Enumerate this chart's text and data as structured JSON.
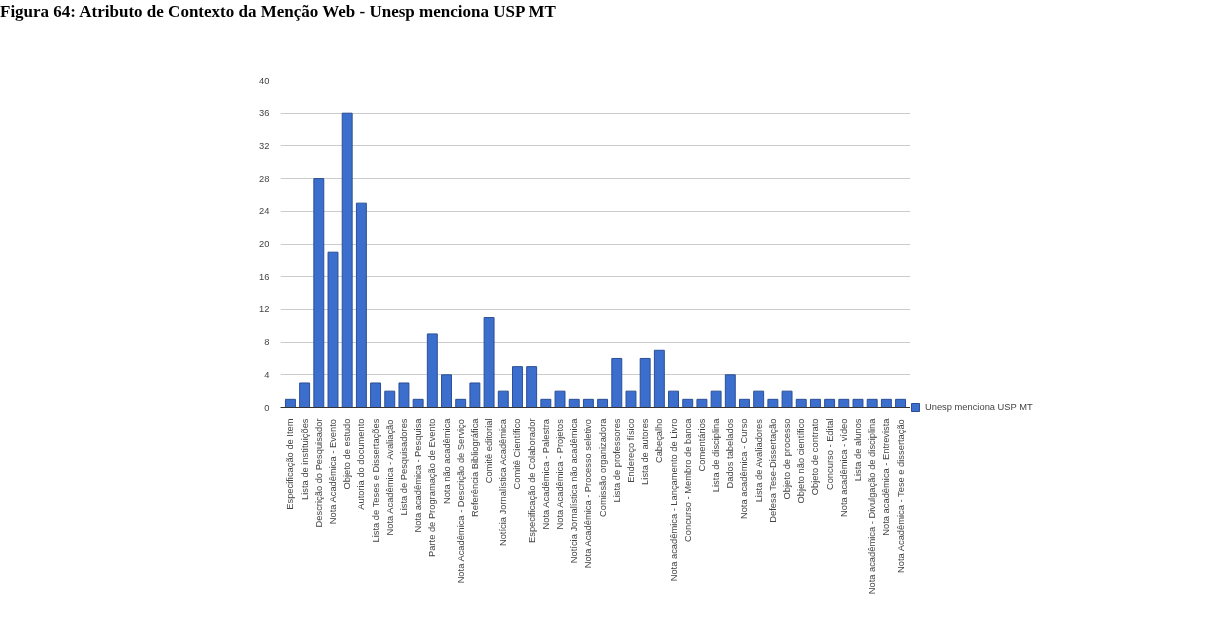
{
  "chart_data": {
    "type": "bar",
    "title": "Figura 64: Atributo de Contexto da Menção Web - Unesp menciona USP MT",
    "categories": [
      "Especificação de Item",
      "Lista de instituições",
      "Descrição do Pesquisador",
      "Nota Acadêmica - Evento",
      "Objeto de estudo",
      "Autoria do documento",
      "Lista de Teses e Dissertações",
      "Nota Acadêmica - Avaliação",
      "Lista de Pesquisadores",
      "Nota acadêmica - Pesquisa",
      "Parte de Programação de Evento",
      "Nota não acadêmica",
      "Nota Acadêmica - Descrição de Serviço",
      "Referência Bibliográfica",
      "Comitê editorial",
      "Notícia Jornalística Acadêmica",
      "Comitê Científico",
      "Especificação de Colaborador",
      "Nota Acadêmica - Palestra",
      "Nota Acadêmica - Projetos",
      "Notícia Jornalística não acadêmica",
      "Nota Acadêmica - Processo seletivo",
      "Comissão organizadora",
      "Lista de professores",
      "Endereço físico",
      "Lista de autores",
      "Cabeçalho",
      "Nota acadêmica - Lançamento de Livro",
      "Concurso - Membro de banca",
      "Comentários",
      "Lista de disciplina",
      "Dados tabelados",
      "Nota acadêmica - Curso",
      "Lista de Avaliadores",
      "Defesa Tese-Dissertação",
      "Objeto de processo",
      "Objeto não científico",
      "Objeto de contrato",
      "Concurso - Edital",
      "Nota acadêmica - vídeo",
      "Lista de alunos",
      "Nota acadêmica - Divulgação de disciplina",
      "Nota acadêmica - Entrevista",
      "Nota Acadêmica - Tese e dissertação"
    ],
    "series": [
      {
        "name": "Unesp menciona USP MT",
        "color": "#3c6fcd",
        "values": [
          1,
          3,
          28,
          19,
          36,
          25,
          3,
          2,
          3,
          1,
          9,
          4,
          1,
          3,
          11,
          2,
          5,
          5,
          1,
          2,
          1,
          1,
          1,
          6,
          2,
          6,
          7,
          2,
          1,
          1,
          2,
          4,
          1,
          2,
          1,
          2,
          1,
          1,
          1,
          1,
          1,
          1,
          1,
          1
        ]
      }
    ],
    "ylim": [
      0,
      40
    ],
    "yticks": [
      0,
      4,
      8,
      12,
      16,
      20,
      24,
      28,
      32,
      36,
      40
    ],
    "grid": "y",
    "legend": "right"
  }
}
